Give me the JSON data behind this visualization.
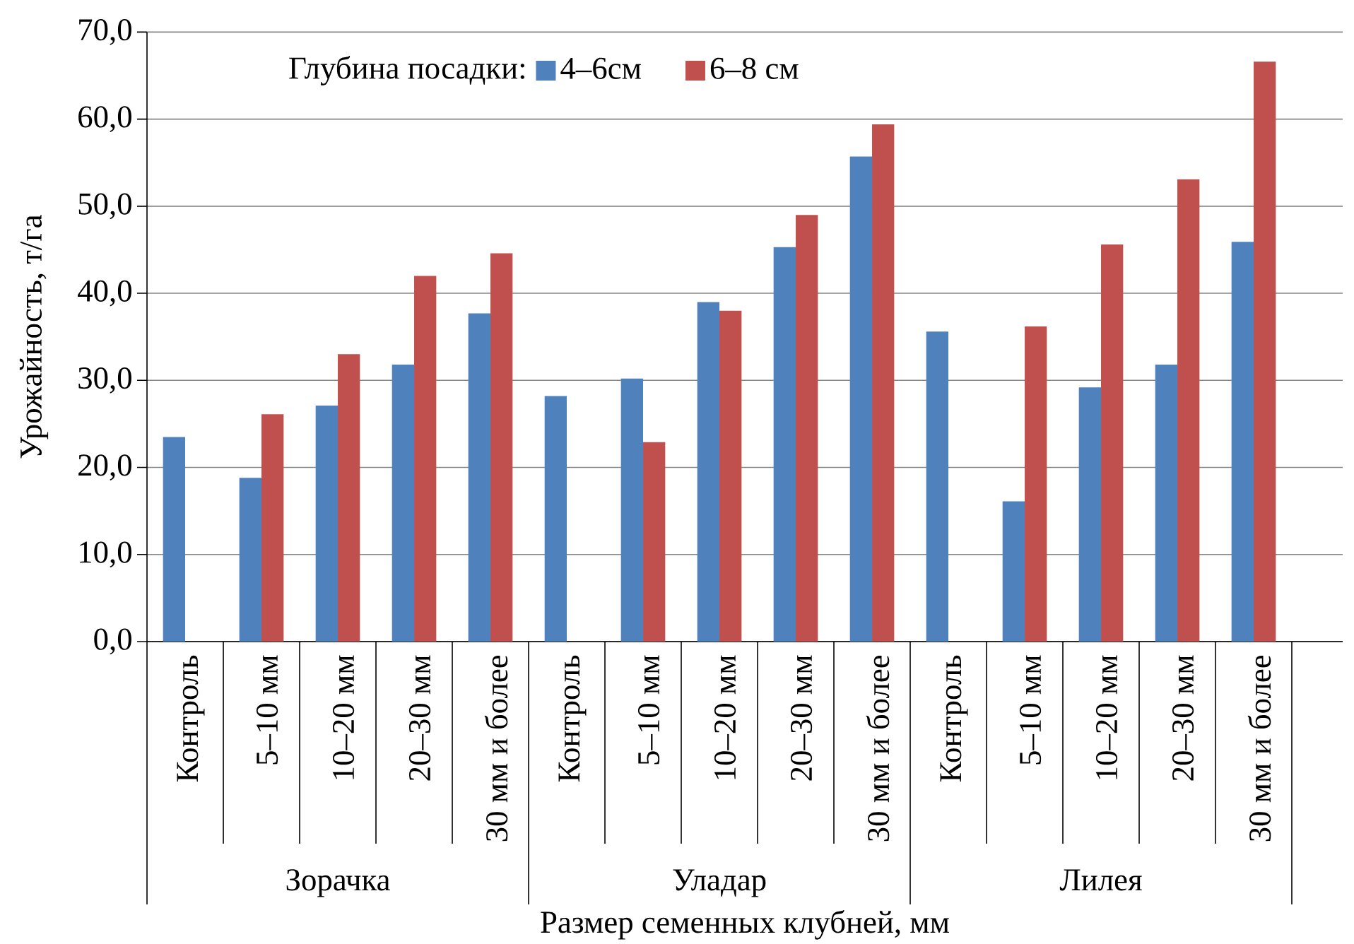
{
  "chart_data": {
    "type": "bar",
    "xlabel": "Размер семенных клубней, мм",
    "ylabel": "Урожайность, т/га",
    "legend_title": "Глубина посадки:",
    "categories": [
      "Контроль",
      "5–10 мм",
      "10–20 мм",
      "20–30 мм",
      "30 мм и более",
      "Контроль",
      "5–10 мм",
      "10–20 мм",
      "20–30 мм",
      "30 мм и более",
      "Контроль",
      "5–10 мм",
      "10–20 мм",
      "20–30 мм",
      "30 мм и более"
    ],
    "series": [
      {
        "name": "4–6см",
        "color": "#4f81bd",
        "values": [
          23.5,
          18.8,
          27.1,
          31.8,
          37.7,
          28.2,
          30.2,
          39.0,
          45.3,
          55.7,
          35.6,
          16.1,
          29.2,
          31.8,
          45.9
        ]
      },
      {
        "name": "6–8 см",
        "color": "#c0504d",
        "values": [
          null,
          26.1,
          33.0,
          42.0,
          44.6,
          null,
          22.9,
          38.0,
          49.0,
          59.4,
          null,
          36.2,
          45.6,
          53.1,
          66.6
        ]
      }
    ],
    "ylim": [
      0,
      70
    ],
    "yticks": [
      {
        "value": 0,
        "label": "0,0"
      },
      {
        "value": 10,
        "label": "10,0"
      },
      {
        "value": 20,
        "label": "20,0"
      },
      {
        "value": 30,
        "label": "30,0"
      },
      {
        "value": 40,
        "label": "40,0"
      },
      {
        "value": 50,
        "label": "50,0"
      },
      {
        "value": 60,
        "label": "60,0"
      },
      {
        "value": 70,
        "label": "70,0"
      }
    ],
    "grid": "y",
    "legend": "top",
    "annotations": [
      "Зорачка",
      "Уладар",
      "Лилея"
    ]
  }
}
